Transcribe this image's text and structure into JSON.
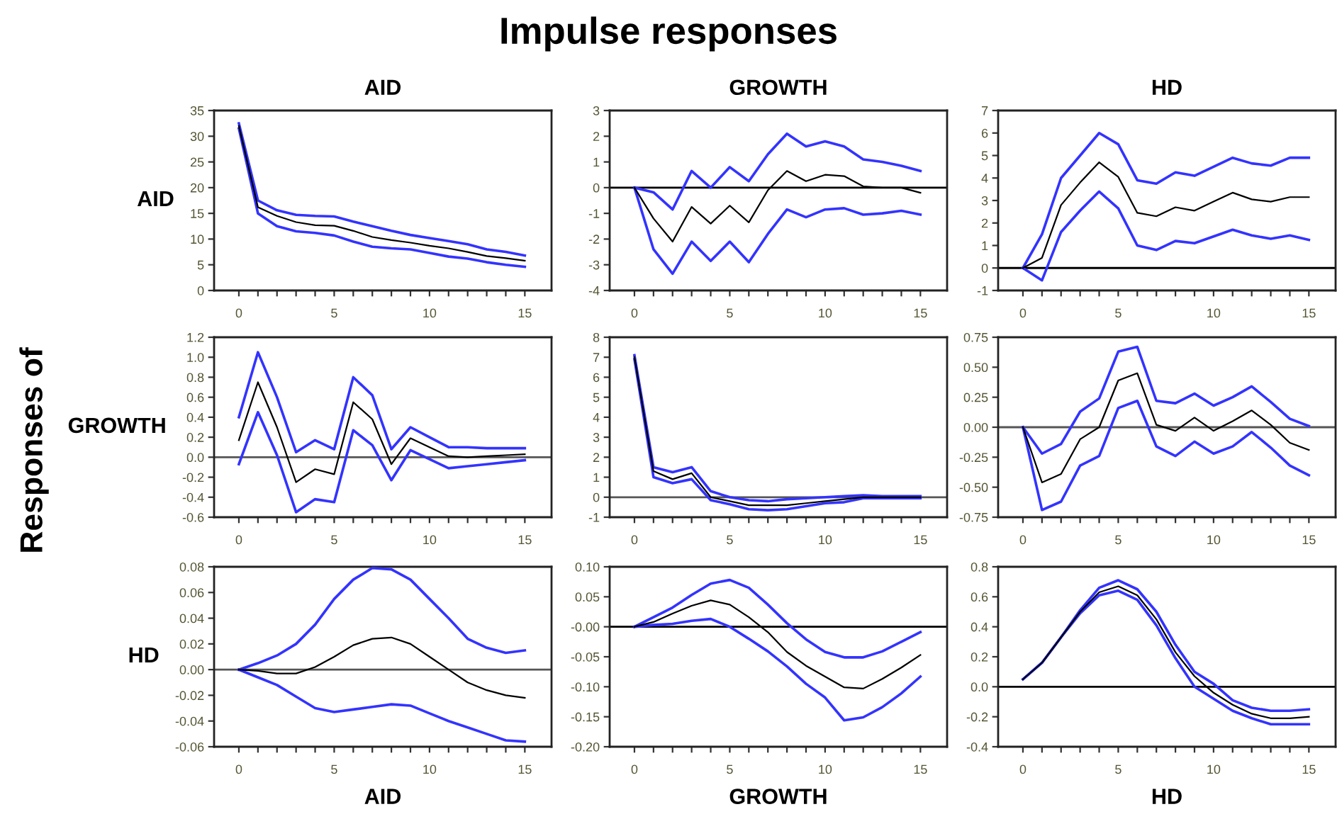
{
  "chart_data": [
    {
      "type": "line",
      "title": "AID",
      "ylabel": "AID",
      "annotations": [
        "Impulse responses",
        "Responses of"
      ],
      "x": [
        0,
        1,
        2,
        3,
        4,
        5,
        6,
        7,
        8,
        9,
        10,
        11,
        12,
        13,
        14,
        15
      ],
      "xlim": [
        -1.3,
        16.4
      ],
      "xticks": [
        0,
        {
          "value": 1,
          "label": null
        },
        {
          "value": 2,
          "label": null
        },
        {
          "value": 3,
          "label": null
        },
        {
          "value": 4,
          "label": null
        },
        5,
        {
          "value": 6,
          "label": null
        },
        {
          "value": 7,
          "label": null
        },
        {
          "value": 8,
          "label": null
        },
        {
          "value": 9,
          "label": null
        },
        10,
        {
          "value": 11,
          "label": null
        },
        {
          "value": 12,
          "label": null
        },
        {
          "value": 13,
          "label": null
        },
        {
          "value": 14,
          "label": null
        },
        15
      ],
      "ylim": [
        0,
        35
      ],
      "yticks": [
        0,
        5,
        10,
        15,
        20,
        25,
        30,
        35
      ],
      "series": [
        {
          "color": "#3333ff",
          "values": [
            32.5,
            17.5,
            15.6,
            14.7,
            14.5,
            14.4,
            13.4,
            12.5,
            11.6,
            10.8,
            10.2,
            9.6,
            9.0,
            8.0,
            7.5,
            6.8
          ]
        },
        {
          "color": "#000000",
          "values": [
            32,
            16.2,
            14.5,
            13.3,
            12.7,
            12.6,
            11.6,
            10.4,
            9.8,
            9.3,
            8.7,
            8.2,
            7.5,
            6.7,
            6.3,
            5.8
          ]
        },
        {
          "color": "#3333ff",
          "values": [
            31.5,
            15,
            12.5,
            11.5,
            11.2,
            10.7,
            9.5,
            8.5,
            8.2,
            8,
            7.3,
            6.6,
            6.2,
            5.5,
            5.0,
            4.6
          ]
        }
      ]
    },
    {
      "type": "line",
      "title": "GROWTH",
      "x": [
        0,
        1,
        2,
        3,
        4,
        5,
        6,
        7,
        8,
        9,
        10,
        11,
        12,
        13,
        14,
        15
      ],
      "xlim": [
        -1.3,
        16.4
      ],
      "xticks": [
        0,
        {
          "value": 1,
          "label": null
        },
        {
          "value": 2,
          "label": null
        },
        {
          "value": 3,
          "label": null
        },
        {
          "value": 4,
          "label": null
        },
        5,
        {
          "value": 6,
          "label": null
        },
        {
          "value": 7,
          "label": null
        },
        {
          "value": 8,
          "label": null
        },
        {
          "value": 9,
          "label": null
        },
        10,
        {
          "value": 11,
          "label": null
        },
        {
          "value": 12,
          "label": null
        },
        {
          "value": 13,
          "label": null
        },
        {
          "value": 14,
          "label": null
        },
        15
      ],
      "ylim": [
        -4,
        3
      ],
      "yticks": [
        -4,
        -3,
        -2,
        -1,
        0,
        1,
        2,
        3
      ],
      "ref_lines": [
        {
          "axis": "y",
          "value": 0,
          "color": "#000000"
        }
      ],
      "series": [
        {
          "color": "#3333ff",
          "values": [
            0,
            -0.18,
            -0.85,
            0.65,
            0,
            0.8,
            0.25,
            1.3,
            2.1,
            1.6,
            1.8,
            1.6,
            1.1,
            1.0,
            0.85,
            0.65
          ]
        },
        {
          "color": "#000000",
          "values": [
            0,
            -1.2,
            -2.1,
            -0.75,
            -1.4,
            -0.7,
            -1.35,
            -0.1,
            0.65,
            0.25,
            0.5,
            0.45,
            0.05,
            0.0,
            0.0,
            -0.2
          ]
        },
        {
          "color": "#3333ff",
          "values": [
            0,
            -2.4,
            -3.35,
            -2.1,
            -2.85,
            -2.1,
            -2.9,
            -1.8,
            -0.85,
            -1.15,
            -0.85,
            -0.8,
            -1.05,
            -1.0,
            -0.9,
            -1.05
          ]
        }
      ]
    },
    {
      "type": "line",
      "title": "HD",
      "x": [
        0,
        1,
        2,
        3,
        4,
        5,
        6,
        7,
        8,
        9,
        10,
        11,
        12,
        13,
        14,
        15
      ],
      "xlim": [
        -1.3,
        16.4
      ],
      "xticks": [
        0,
        {
          "value": 1,
          "label": null
        },
        {
          "value": 2,
          "label": null
        },
        {
          "value": 3,
          "label": null
        },
        {
          "value": 4,
          "label": null
        },
        5,
        {
          "value": 6,
          "label": null
        },
        {
          "value": 7,
          "label": null
        },
        {
          "value": 8,
          "label": null
        },
        {
          "value": 9,
          "label": null
        },
        10,
        {
          "value": 11,
          "label": null
        },
        {
          "value": 12,
          "label": null
        },
        {
          "value": 13,
          "label": null
        },
        {
          "value": 14,
          "label": null
        },
        15
      ],
      "ylim": [
        -1,
        7
      ],
      "yticks": [
        -1,
        0,
        1,
        2,
        3,
        4,
        5,
        6,
        7
      ],
      "ref_lines": [
        {
          "axis": "y",
          "value": 0,
          "color": "#000000"
        }
      ],
      "series": [
        {
          "color": "#3333ff",
          "values": [
            0,
            1.5,
            4.0,
            5.0,
            6.0,
            5.5,
            3.9,
            3.75,
            4.25,
            4.1,
            4.5,
            4.9,
            4.65,
            4.55,
            4.9,
            4.9
          ]
        },
        {
          "color": "#000000",
          "values": [
            0,
            0.45,
            2.8,
            3.8,
            4.7,
            4.05,
            2.45,
            2.3,
            2.7,
            2.55,
            2.95,
            3.35,
            3.05,
            2.95,
            3.15,
            3.15
          ]
        },
        {
          "color": "#3333ff",
          "values": [
            0,
            -0.55,
            1.6,
            2.55,
            3.4,
            2.65,
            1.0,
            0.8,
            1.2,
            1.1,
            1.4,
            1.7,
            1.45,
            1.3,
            1.45,
            1.25
          ]
        }
      ]
    },
    {
      "type": "line",
      "ylabel": "GROWTH",
      "x": [
        0,
        1,
        2,
        3,
        4,
        5,
        6,
        7,
        8,
        9,
        10,
        11,
        12,
        13,
        14,
        15
      ],
      "xlim": [
        -1.3,
        16.4
      ],
      "xticks": [
        0,
        {
          "value": 1,
          "label": null
        },
        {
          "value": 2,
          "label": null
        },
        {
          "value": 3,
          "label": null
        },
        {
          "value": 4,
          "label": null
        },
        5,
        {
          "value": 6,
          "label": null
        },
        {
          "value": 7,
          "label": null
        },
        {
          "value": 8,
          "label": null
        },
        {
          "value": 9,
          "label": null
        },
        10,
        {
          "value": 11,
          "label": null
        },
        {
          "value": 12,
          "label": null
        },
        {
          "value": 13,
          "label": null
        },
        {
          "value": 14,
          "label": null
        },
        15
      ],
      "ylim": [
        -0.6,
        1.2
      ],
      "yticks": [
        {
          "value": -0.6,
          "label": "-0.6"
        },
        {
          "value": -0.4,
          "label": "-0.4"
        },
        {
          "value": -0.2,
          "label": "-0.2"
        },
        {
          "value": 0,
          "label": "0.0"
        },
        {
          "value": 0.2,
          "label": "0.2"
        },
        {
          "value": 0.4,
          "label": "0.4"
        },
        {
          "value": 0.6,
          "label": "0.6"
        },
        {
          "value": 0.8,
          "label": "0.8"
        },
        {
          "value": 1.0,
          "label": "1.0"
        },
        {
          "value": 1.2,
          "label": "1.2"
        }
      ],
      "ref_lines": [
        {
          "axis": "y",
          "value": 0,
          "color": "#555555"
        }
      ],
      "series": [
        {
          "color": "#3333ff",
          "values": [
            0.4,
            1.05,
            0.6,
            0.05,
            0.17,
            0.08,
            0.8,
            0.62,
            0.08,
            0.3,
            0.2,
            0.1,
            0.1,
            0.09,
            0.09,
            0.09
          ]
        },
        {
          "color": "#000000",
          "values": [
            0.17,
            0.75,
            0.3,
            -0.25,
            -0.12,
            -0.17,
            0.55,
            0.38,
            -0.07,
            0.19,
            0.1,
            0.01,
            0.0,
            0.01,
            0.02,
            0.03
          ]
        },
        {
          "color": "#3333ff",
          "values": [
            -0.07,
            0.45,
            0.02,
            -0.55,
            -0.42,
            -0.45,
            0.27,
            0.12,
            -0.23,
            0.07,
            -0.02,
            -0.11,
            -0.09,
            -0.07,
            -0.05,
            -0.03
          ]
        }
      ]
    },
    {
      "type": "line",
      "x": [
        0,
        1,
        2,
        3,
        4,
        5,
        6,
        7,
        8,
        9,
        10,
        11,
        12,
        13,
        14,
        15
      ],
      "xlim": [
        -1.3,
        16.4
      ],
      "xticks": [
        0,
        {
          "value": 1,
          "label": null
        },
        {
          "value": 2,
          "label": null
        },
        {
          "value": 3,
          "label": null
        },
        {
          "value": 4,
          "label": null
        },
        5,
        {
          "value": 6,
          "label": null
        },
        {
          "value": 7,
          "label": null
        },
        {
          "value": 8,
          "label": null
        },
        {
          "value": 9,
          "label": null
        },
        10,
        {
          "value": 11,
          "label": null
        },
        {
          "value": 12,
          "label": null
        },
        {
          "value": 13,
          "label": null
        },
        {
          "value": 14,
          "label": null
        },
        15
      ],
      "ylim": [
        -1,
        8
      ],
      "yticks": [
        -1,
        0,
        1,
        2,
        3,
        4,
        5,
        6,
        7,
        8
      ],
      "ref_lines": [
        {
          "axis": "y",
          "value": 0,
          "color": "#555555"
        }
      ],
      "series": [
        {
          "color": "#3333ff",
          "values": [
            7.1,
            1.5,
            1.25,
            1.5,
            0.3,
            0.0,
            -0.15,
            -0.2,
            -0.1,
            -0.05,
            0,
            0.05,
            0.1,
            0.05,
            0.05,
            0.05
          ]
        },
        {
          "color": "#000000",
          "values": [
            7.0,
            1.3,
            0.9,
            1.2,
            0.0,
            -0.2,
            -0.4,
            -0.4,
            -0.4,
            -0.3,
            -0.2,
            -0.1,
            0,
            0,
            0,
            0
          ]
        },
        {
          "color": "#3333ff",
          "values": [
            6.9,
            1.0,
            0.7,
            0.9,
            -0.15,
            -0.35,
            -0.6,
            -0.65,
            -0.6,
            -0.45,
            -0.3,
            -0.25,
            -0.05,
            -0.05,
            -0.05,
            -0.05
          ]
        }
      ]
    },
    {
      "type": "line",
      "x": [
        0,
        1,
        2,
        3,
        4,
        5,
        6,
        7,
        8,
        9,
        10,
        11,
        12,
        13,
        14,
        15
      ],
      "xlim": [
        -1.3,
        16.4
      ],
      "xticks": [
        0,
        {
          "value": 1,
          "label": null
        },
        {
          "value": 2,
          "label": null
        },
        {
          "value": 3,
          "label": null
        },
        {
          "value": 4,
          "label": null
        },
        5,
        {
          "value": 6,
          "label": null
        },
        {
          "value": 7,
          "label": null
        },
        {
          "value": 8,
          "label": null
        },
        {
          "value": 9,
          "label": null
        },
        10,
        {
          "value": 11,
          "label": null
        },
        {
          "value": 12,
          "label": null
        },
        {
          "value": 13,
          "label": null
        },
        {
          "value": 14,
          "label": null
        },
        15
      ],
      "ylim": [
        -0.75,
        0.75
      ],
      "yticks": [
        {
          "value": -0.75,
          "label": "-0.75"
        },
        {
          "value": -0.5,
          "label": "-0.50"
        },
        {
          "value": -0.25,
          "label": "-0.25"
        },
        {
          "value": 0,
          "label": "0.00"
        },
        {
          "value": 0.25,
          "label": "0.25"
        },
        {
          "value": 0.5,
          "label": "0.50"
        },
        {
          "value": 0.75,
          "label": "0.75"
        }
      ],
      "ref_lines": [
        {
          "axis": "y",
          "value": 0,
          "color": "#555555"
        }
      ],
      "series": [
        {
          "color": "#3333ff",
          "values": [
            0,
            -0.22,
            -0.14,
            0.13,
            0.24,
            0.63,
            0.67,
            0.22,
            0.2,
            0.28,
            0.18,
            0.25,
            0.34,
            0.21,
            0.07,
            0.01
          ]
        },
        {
          "color": "#000000",
          "values": [
            0,
            -0.46,
            -0.39,
            -0.1,
            0.0,
            0.39,
            0.45,
            0.02,
            -0.03,
            0.08,
            -0.03,
            0.05,
            0.14,
            0.02,
            -0.13,
            -0.19
          ]
        },
        {
          "color": "#3333ff",
          "values": [
            0,
            -0.69,
            -0.62,
            -0.32,
            -0.24,
            0.16,
            0.22,
            -0.16,
            -0.24,
            -0.12,
            -0.22,
            -0.16,
            -0.04,
            -0.17,
            -0.32,
            -0.4
          ]
        }
      ]
    },
    {
      "type": "line",
      "ylabel": "HD",
      "xlabel": "AID",
      "x": [
        0,
        1,
        2,
        3,
        4,
        5,
        6,
        7,
        8,
        9,
        10,
        11,
        12,
        13,
        14,
        15
      ],
      "xlim": [
        -1.3,
        16.4
      ],
      "xticks": [
        0,
        {
          "value": 1,
          "label": null
        },
        {
          "value": 2,
          "label": null
        },
        {
          "value": 3,
          "label": null
        },
        {
          "value": 4,
          "label": null
        },
        5,
        {
          "value": 6,
          "label": null
        },
        {
          "value": 7,
          "label": null
        },
        {
          "value": 8,
          "label": null
        },
        {
          "value": 9,
          "label": null
        },
        10,
        {
          "value": 11,
          "label": null
        },
        {
          "value": 12,
          "label": null
        },
        {
          "value": 13,
          "label": null
        },
        {
          "value": 14,
          "label": null
        },
        15
      ],
      "ylim": [
        -0.06,
        0.08
      ],
      "yticks": [
        {
          "value": -0.06,
          "label": "-0.06"
        },
        {
          "value": -0.04,
          "label": "-0.04"
        },
        {
          "value": -0.02,
          "label": "-0.02"
        },
        {
          "value": 0,
          "label": "0.00"
        },
        {
          "value": 0.02,
          "label": "0.02"
        },
        {
          "value": 0.04,
          "label": "0.04"
        },
        {
          "value": 0.06,
          "label": "0.06"
        },
        {
          "value": 0.08,
          "label": "0.08"
        }
      ],
      "ref_lines": [
        {
          "axis": "y",
          "value": 0,
          "color": "#555555"
        }
      ],
      "series": [
        {
          "color": "#3333ff",
          "values": [
            0,
            0.005,
            0.011,
            0.02,
            0.035,
            0.055,
            0.07,
            0.079,
            0.078,
            0.07,
            0.055,
            0.04,
            0.024,
            0.017,
            0.013,
            0.015
          ]
        },
        {
          "color": "#000000",
          "values": [
            0,
            -0.001,
            -0.003,
            -0.003,
            0.002,
            0.01,
            0.019,
            0.024,
            0.025,
            0.02,
            0.01,
            0.0,
            -0.01,
            -0.016,
            -0.02,
            -0.022
          ]
        },
        {
          "color": "#3333ff",
          "values": [
            0,
            -0.006,
            -0.012,
            -0.021,
            -0.03,
            -0.033,
            -0.031,
            -0.029,
            -0.027,
            -0.028,
            -0.034,
            -0.04,
            -0.045,
            -0.05,
            -0.055,
            -0.056
          ]
        }
      ]
    },
    {
      "type": "line",
      "xlabel": "GROWTH",
      "x": [
        0,
        1,
        2,
        3,
        4,
        5,
        6,
        7,
        8,
        9,
        10,
        11,
        12,
        13,
        14,
        15
      ],
      "xlim": [
        -1.3,
        16.4
      ],
      "xticks": [
        0,
        {
          "value": 1,
          "label": null
        },
        {
          "value": 2,
          "label": null
        },
        {
          "value": 3,
          "label": null
        },
        {
          "value": 4,
          "label": null
        },
        5,
        {
          "value": 6,
          "label": null
        },
        {
          "value": 7,
          "label": null
        },
        {
          "value": 8,
          "label": null
        },
        {
          "value": 9,
          "label": null
        },
        10,
        {
          "value": 11,
          "label": null
        },
        {
          "value": 12,
          "label": null
        },
        {
          "value": 13,
          "label": null
        },
        {
          "value": 14,
          "label": null
        },
        15
      ],
      "ylim": [
        -0.2,
        0.1
      ],
      "yticks": [
        {
          "value": -0.2,
          "label": "-0.20"
        },
        {
          "value": -0.15,
          "label": "-0.15"
        },
        {
          "value": -0.1,
          "label": "-0.10"
        },
        {
          "value": -0.05,
          "label": "-0.05"
        },
        {
          "value": 0,
          "label": "-0.00"
        },
        {
          "value": 0.05,
          "label": "0.05"
        },
        {
          "value": 0.1,
          "label": "0.10"
        }
      ],
      "ref_lines": [
        {
          "axis": "y",
          "value": 0,
          "color": "#000000"
        }
      ],
      "series": [
        {
          "color": "#3333ff",
          "values": [
            0,
            0.016,
            0.032,
            0.053,
            0.072,
            0.078,
            0.065,
            0.037,
            0.006,
            -0.021,
            -0.042,
            -0.051,
            -0.051,
            -0.041,
            -0.025,
            -0.009
          ]
        },
        {
          "color": "#000000",
          "values": [
            0,
            0.008,
            0.022,
            0.035,
            0.044,
            0.037,
            0.016,
            -0.009,
            -0.042,
            -0.065,
            -0.083,
            -0.101,
            -0.103,
            -0.087,
            -0.068,
            -0.047
          ]
        },
        {
          "color": "#3333ff",
          "values": [
            0,
            0.003,
            0.005,
            0.01,
            0.013,
            0.0,
            -0.02,
            -0.041,
            -0.066,
            -0.095,
            -0.118,
            -0.156,
            -0.151,
            -0.134,
            -0.111,
            -0.083
          ]
        }
      ]
    },
    {
      "type": "line",
      "xlabel": "HD",
      "x": [
        0,
        1,
        2,
        3,
        4,
        5,
        6,
        7,
        8,
        9,
        10,
        11,
        12,
        13,
        14,
        15
      ],
      "xlim": [
        -1.3,
        16.4
      ],
      "xticks": [
        0,
        {
          "value": 1,
          "label": null
        },
        {
          "value": 2,
          "label": null
        },
        {
          "value": 3,
          "label": null
        },
        {
          "value": 4,
          "label": null
        },
        5,
        {
          "value": 6,
          "label": null
        },
        {
          "value": 7,
          "label": null
        },
        {
          "value": 8,
          "label": null
        },
        {
          "value": 9,
          "label": null
        },
        10,
        {
          "value": 11,
          "label": null
        },
        {
          "value": 12,
          "label": null
        },
        {
          "value": 13,
          "label": null
        },
        {
          "value": 14,
          "label": null
        },
        15
      ],
      "ylim": [
        -0.4,
        0.8
      ],
      "yticks": [
        {
          "value": -0.4,
          "label": "-0.4"
        },
        {
          "value": -0.2,
          "label": "-0.2"
        },
        {
          "value": 0,
          "label": "0.0"
        },
        {
          "value": 0.2,
          "label": "0.2"
        },
        {
          "value": 0.4,
          "label": "0.4"
        },
        {
          "value": 0.6,
          "label": "0.6"
        },
        {
          "value": 0.8,
          "label": "0.8"
        }
      ],
      "ref_lines": [
        {
          "axis": "y",
          "value": 0,
          "color": "#000000"
        }
      ],
      "series": [
        {
          "color": "#3333ff",
          "values": [
            0.05,
            0.16,
            0.33,
            0.51,
            0.66,
            0.71,
            0.65,
            0.5,
            0.28,
            0.1,
            0.02,
            -0.09,
            -0.14,
            -0.16,
            -0.16,
            -0.15
          ]
        },
        {
          "color": "#000000",
          "values": [
            0.05,
            0.16,
            0.33,
            0.5,
            0.63,
            0.67,
            0.61,
            0.45,
            0.23,
            0.07,
            -0.04,
            -0.12,
            -0.18,
            -0.21,
            -0.21,
            -0.2
          ]
        },
        {
          "color": "#3333ff",
          "values": [
            0.05,
            0.16,
            0.33,
            0.49,
            0.61,
            0.64,
            0.58,
            0.41,
            0.19,
            0.0,
            -0.08,
            -0.16,
            -0.21,
            -0.25,
            -0.25,
            -0.25
          ]
        }
      ]
    }
  ]
}
